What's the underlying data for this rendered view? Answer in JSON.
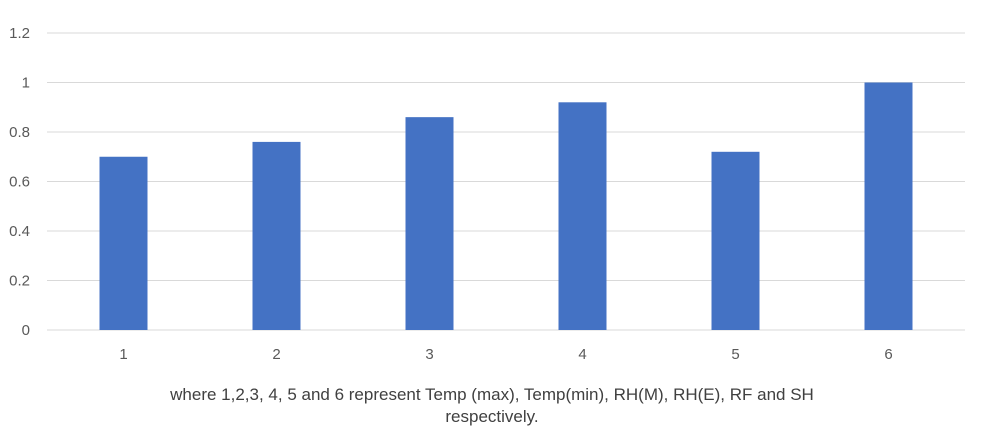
{
  "chart_data": {
    "type": "bar",
    "categories": [
      "1",
      "2",
      "3",
      "4",
      "5",
      "6"
    ],
    "values": [
      0.7,
      0.76,
      0.86,
      0.92,
      0.72,
      1.0
    ],
    "ylim": [
      0,
      1.2
    ],
    "yticks": [
      "0",
      "0.2",
      "0.4",
      "0.6",
      "0.8",
      "1",
      "1.2"
    ],
    "grid": true,
    "bar_color": "#4472c4",
    "grid_color": "#d9d9d9",
    "text_color": "#595959"
  },
  "caption": {
    "line1": "where 1,2,3, 4, 5 and 6 represent Temp (max), Temp(min), RH(M), RH(E), RF and SH",
    "line2": "respectively."
  }
}
